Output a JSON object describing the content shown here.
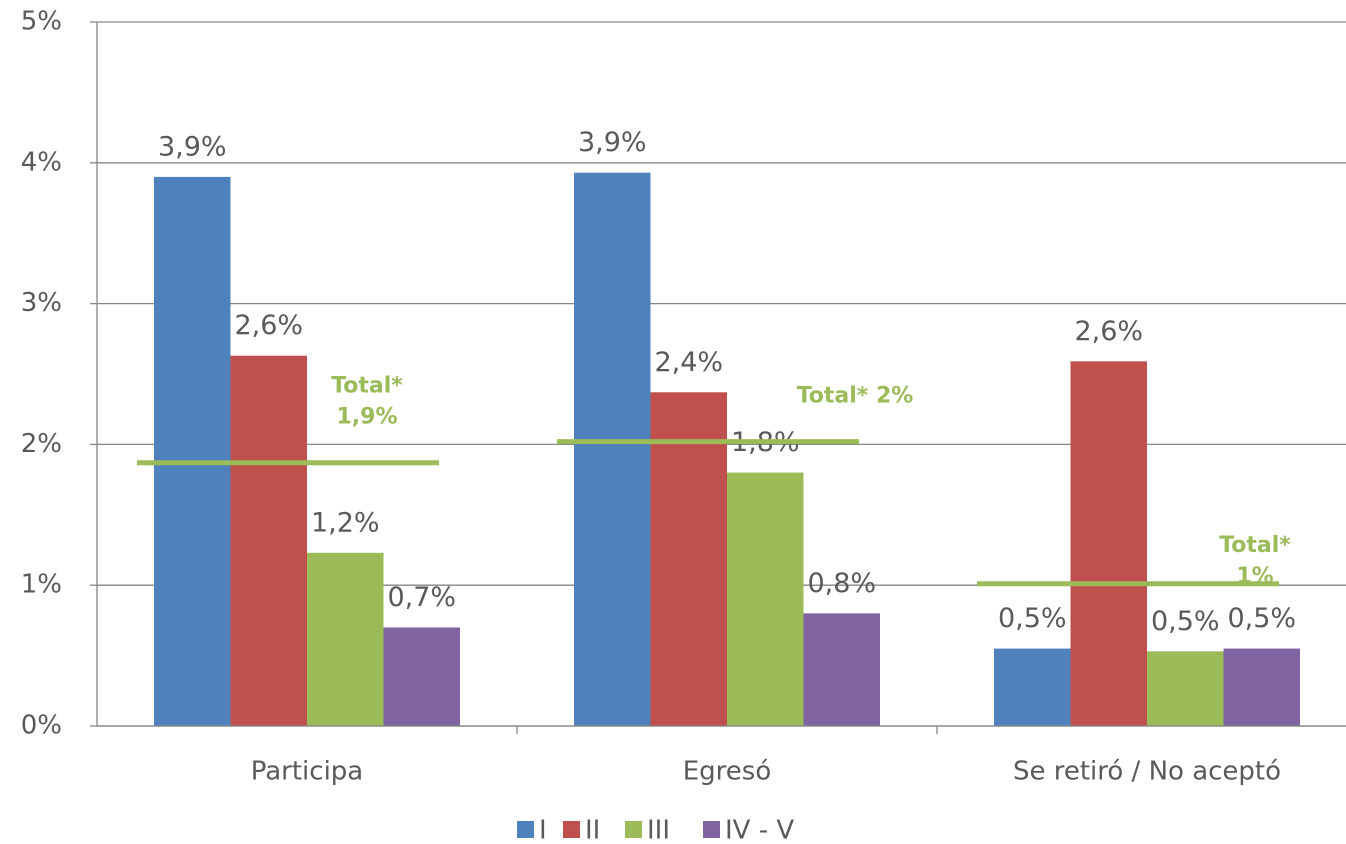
{
  "chart_data": {
    "type": "bar",
    "categories": [
      "Participa",
      "Egresó",
      "Se retiró / No aceptó"
    ],
    "series": [
      {
        "name": "I",
        "color": "#4f81bd",
        "values": [
          3.9,
          3.93,
          0.55
        ],
        "value_labels": [
          "3,9%",
          "3,9%",
          "0,5%"
        ]
      },
      {
        "name": "II",
        "color": "#c0504d",
        "values": [
          2.63,
          2.37,
          2.59
        ],
        "value_labels": [
          "2,6%",
          "2,4%",
          "2,6%"
        ]
      },
      {
        "name": "III",
        "color": "#9bbb59",
        "values": [
          1.23,
          1.8,
          0.53
        ],
        "value_labels": [
          "1,2%",
          "1,8%",
          "0,5%"
        ]
      },
      {
        "name": "IV - V",
        "color": "#8064a2",
        "values": [
          0.7,
          0.8,
          0.55
        ],
        "value_labels": [
          "0,7%",
          "0,8%",
          "0,5%"
        ]
      }
    ],
    "totals": {
      "color": "#9bbb59",
      "values": [
        1.87,
        2.02,
        1.01
      ],
      "labels": [
        [
          "Total*",
          "1,9%"
        ],
        [
          "Total* 2%"
        ],
        [
          "Total*",
          "1%"
        ]
      ]
    },
    "ylim": [
      0,
      5
    ],
    "yticks": [
      {
        "value": 0,
        "label": "0%"
      },
      {
        "value": 1,
        "label": "1%"
      },
      {
        "value": 2,
        "label": "2%"
      },
      {
        "value": 3,
        "label": "3%"
      },
      {
        "value": 4,
        "label": "4%"
      },
      {
        "value": 5,
        "label": "5%"
      }
    ],
    "grid": true,
    "legend": "bottom"
  }
}
